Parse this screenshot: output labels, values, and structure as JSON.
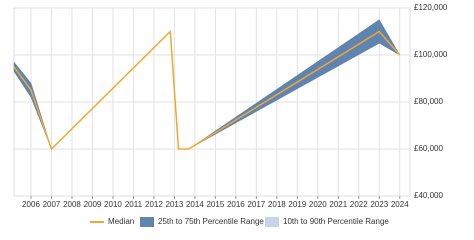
{
  "chart_data": {
    "type": "line",
    "x": [
      2005.17,
      2006,
      2007,
      2012.8,
      2013.2,
      2013.7,
      2023,
      2024
    ],
    "series": [
      {
        "name": "10th to 90th Percentile Range",
        "kind": "band",
        "color": "#c6d6ea",
        "lower": [
          93000,
          82000,
          60000,
          null,
          null,
          60000,
          105000,
          100000
        ],
        "upper": [
          97000,
          88000,
          60000,
          null,
          null,
          60000,
          115000,
          100000
        ]
      },
      {
        "name": "25th to 75th Percentile Range",
        "kind": "band",
        "color": "#5f84b0",
        "lower": [
          93000,
          82000,
          60000,
          null,
          null,
          60000,
          105000,
          100000
        ],
        "upper": [
          97000,
          88000,
          60000,
          null,
          null,
          60000,
          115000,
          100000
        ]
      },
      {
        "name": "Median",
        "kind": "line",
        "color": "#f0a830",
        "values": [
          95000,
          85000,
          60000,
          110000,
          60000,
          60000,
          110000,
          100000
        ]
      }
    ],
    "xlim": [
      2005.17,
      2024.5
    ],
    "xticks": [
      2006,
      2007,
      2008,
      2009,
      2010,
      2011,
      2012,
      2013,
      2014,
      2015,
      2016,
      2017,
      2018,
      2019,
      2020,
      2021,
      2022,
      2023,
      2024
    ],
    "ylim": [
      40000,
      120000
    ],
    "yticks": [
      {
        "value": 40000,
        "label": "£40,000"
      },
      {
        "value": 60000,
        "label": "£60,000"
      },
      {
        "value": 80000,
        "label": "£80,000"
      },
      {
        "value": 100000,
        "label": "£100,000"
      },
      {
        "value": 120000,
        "label": "£120,000"
      }
    ],
    "grid": true,
    "legend": "bottom"
  }
}
